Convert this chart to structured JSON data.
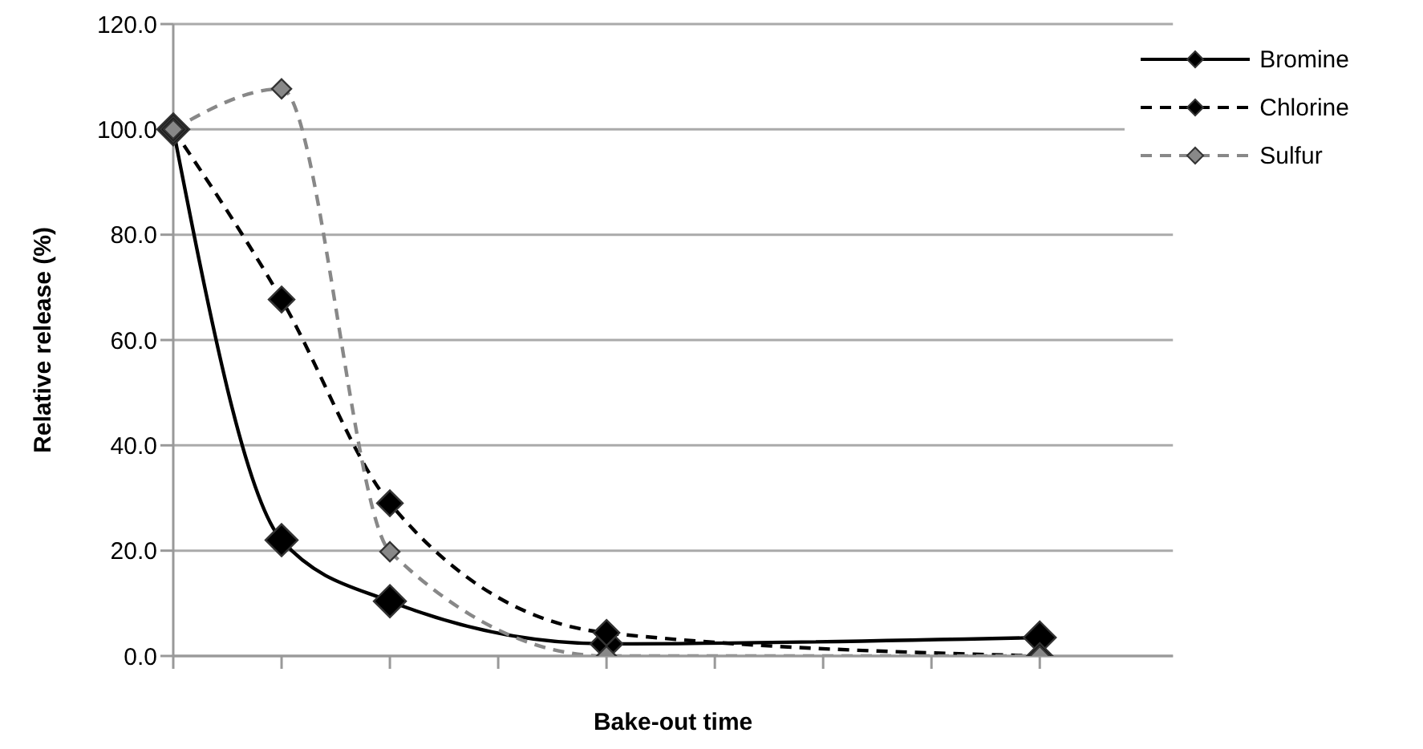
{
  "chart_data": {
    "type": "line",
    "xlabel": "Bake-out time",
    "ylabel": "Relative release (%)",
    "categories": [
      null,
      null,
      null,
      null,
      null,
      null,
      null,
      null,
      null
    ],
    "series": [
      {
        "name": "Bromine",
        "color": "#000000",
        "line_style": "solid",
        "values": [
          100,
          22,
          10.4,
          null,
          2.3,
          null,
          null,
          null,
          3.5
        ]
      },
      {
        "name": "Chlorine",
        "color": "#000000",
        "line_style": "dashed",
        "values": [
          100,
          67.7,
          29,
          null,
          4.4,
          null,
          null,
          null,
          0
        ]
      },
      {
        "name": "Sulfur",
        "color": "#888888",
        "line_style": "dashed",
        "values": [
          100,
          107.7,
          19.8,
          null,
          0,
          null,
          null,
          null,
          0
        ]
      }
    ],
    "ylim": [
      0,
      120
    ],
    "yticks": [
      {
        "value": 0,
        "label": "0.0"
      },
      {
        "value": 20,
        "label": "20.0"
      },
      {
        "value": 40,
        "label": "40.0"
      },
      {
        "value": 60,
        "label": "60.0"
      },
      {
        "value": 80,
        "label": "80.0"
      },
      {
        "value": 100,
        "label": "100.0"
      },
      {
        "value": 120,
        "label": "120.0"
      }
    ],
    "grid": "y",
    "legend": "top right",
    "marker": "diamond",
    "tick_labels": "y"
  }
}
